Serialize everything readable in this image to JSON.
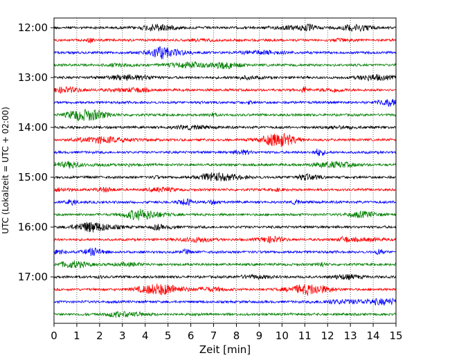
{
  "chart_data": {
    "type": "line",
    "title": "",
    "xlabel": "Zeit  [min]",
    "ylabel": "UTC (Lokalzeit = UTC + 02:00)",
    "xlim": [
      0,
      15
    ],
    "x_ticks": [
      0,
      1,
      2,
      3,
      4,
      5,
      6,
      7,
      8,
      9,
      10,
      11,
      12,
      13,
      14,
      15
    ],
    "x_tick_labels": [
      "0",
      "1",
      "2",
      "3",
      "4",
      "5",
      "6",
      "7",
      "8",
      "9",
      "10",
      "11",
      "12",
      "13",
      "14",
      "15"
    ],
    "y_tick_labels": [
      {
        "label": "12:00",
        "trace": 0
      },
      {
        "label": "13:00",
        "trace": 4
      },
      {
        "label": "14:00",
        "trace": 8
      },
      {
        "label": "15:00",
        "trace": 12
      },
      {
        "label": "16:00",
        "trace": 16
      },
      {
        "label": "17:00",
        "trace": 20
      }
    ],
    "vertical_grid": "dotted",
    "trace_interval_min": 15,
    "trace_colors": [
      "#000000",
      "#ff0000",
      "#0000ff",
      "#008000"
    ],
    "trace_count": 24
  }
}
